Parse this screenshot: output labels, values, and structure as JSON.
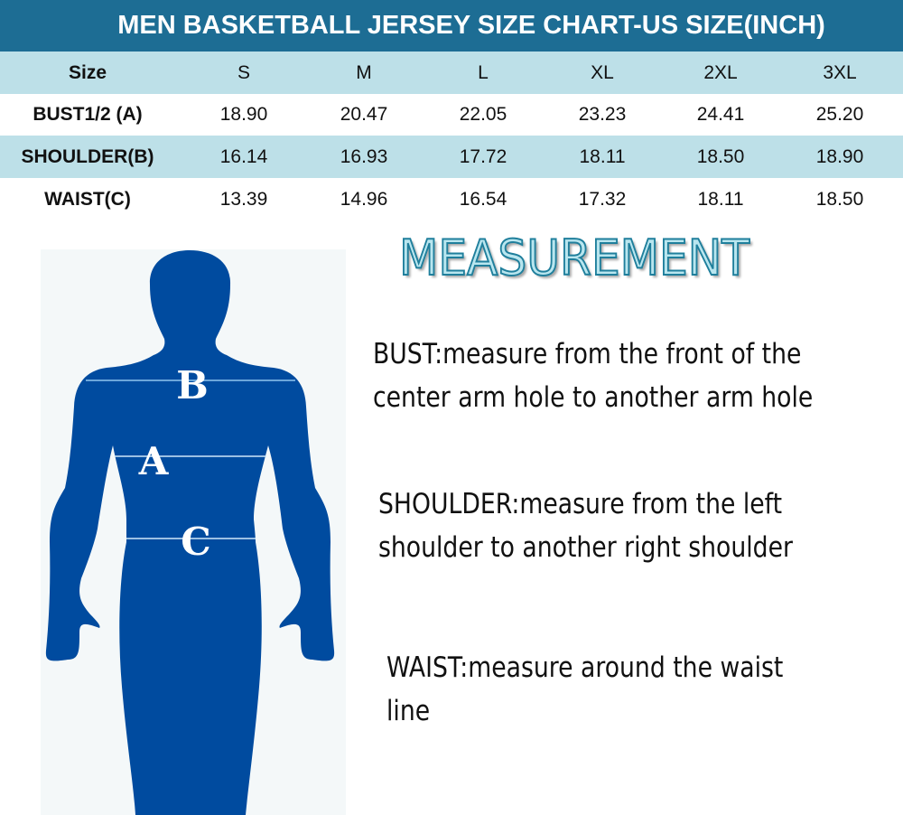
{
  "title": "MEN BASKETBALL JERSEY SIZE CHART-US SIZE(INCH)",
  "table": {
    "header": [
      "Size",
      "S",
      "M",
      "L",
      "XL",
      "2XL",
      "3XL"
    ],
    "rows": [
      [
        "BUST1/2 (A)",
        "18.90",
        "20.47",
        "22.05",
        "23.23",
        "24.41",
        "25.20"
      ],
      [
        "SHOULDER(B)",
        "16.14",
        "16.93",
        "17.72",
        "18.11",
        "18.50",
        "18.90"
      ],
      [
        "WAIST(C)",
        "13.39",
        "14.96",
        "16.54",
        "17.32",
        "18.11",
        "18.50"
      ]
    ]
  },
  "figure": {
    "labels": {
      "b": "B",
      "a": "A",
      "c": "C"
    },
    "body_color": "#004b9f"
  },
  "measurement": {
    "heading": "MEASUREMENT",
    "bust": [
      "BUST:measure from the front of the",
      "center arm hole to another arm hole"
    ],
    "shoulder": [
      "SHOULDER:measure from the left",
      "shoulder to another right shoulder"
    ],
    "waist": [
      "WAIST:measure around the waist",
      "line"
    ]
  },
  "colors": {
    "title_bar": "#1d6d94",
    "row_alt": "#bde0e8"
  }
}
